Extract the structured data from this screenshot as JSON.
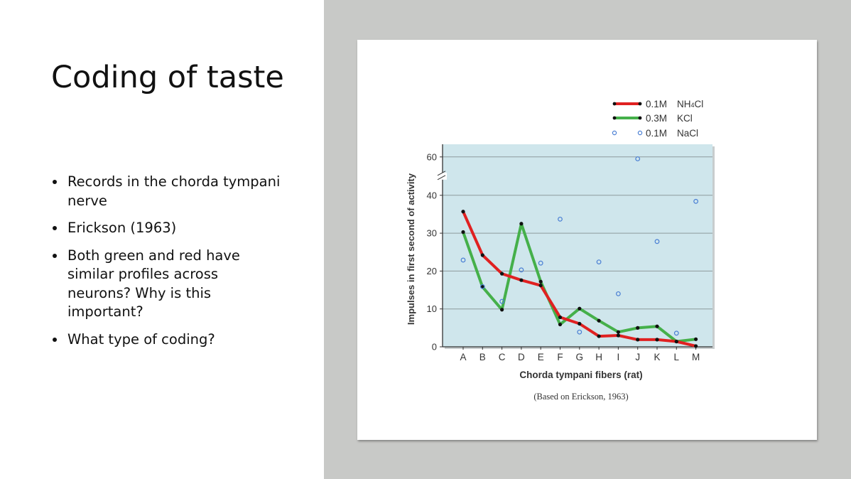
{
  "slide": {
    "title": "Coding of taste",
    "bullets": [
      "Records in the chorda tympani nerve",
      "Erickson (1963)",
      "Both green and red have similar profiles across neurons? Why is this important?",
      "What type of coding?"
    ]
  },
  "colors": {
    "plot_background": "#cfe6ec",
    "nh4cl": "#e02121",
    "kcl": "#45b04a",
    "nacl": "#4a7fd4",
    "right_panel": "#c8c9c7"
  },
  "chart_data": {
    "type": "line",
    "xlabel": "Chorda tympani fibers (rat)",
    "ylabel": "Impulses in first second of activity",
    "caption": "(Based on Erickson, 1963)",
    "categories": [
      "A",
      "B",
      "C",
      "D",
      "E",
      "F",
      "G",
      "H",
      "I",
      "J",
      "K",
      "L",
      "M"
    ],
    "yticks": [
      "0",
      "10",
      "20",
      "30",
      "40",
      "60"
    ],
    "axis_break": "between 40 and 60",
    "ylim": [
      0,
      62
    ],
    "grid": true,
    "legend_position": "top-right",
    "series": [
      {
        "label": "0.1M",
        "compound": "NH",
        "subscript": "4",
        "compound_tail": "Cl",
        "style": "line",
        "values": [
          35.7,
          24.2,
          19.3,
          17.6,
          16.2,
          7.8,
          6.1,
          2.8,
          3.0,
          1.9,
          1.9,
          1.4,
          0.2
        ]
      },
      {
        "label": "0.3M",
        "compound": "KCl",
        "style": "line",
        "values": [
          30.3,
          15.8,
          9.8,
          32.5,
          17.2,
          5.9,
          10.1,
          6.9,
          3.9,
          5.0,
          5.4,
          1.4,
          2.0
        ]
      },
      {
        "label": "0.1M",
        "compound": "NaCl",
        "style": "markers",
        "values": [
          22.9,
          15.9,
          12.0,
          20.3,
          22.1,
          33.7,
          3.9,
          22.4,
          14.0,
          59.0,
          27.8,
          3.6,
          38.4
        ]
      }
    ]
  }
}
